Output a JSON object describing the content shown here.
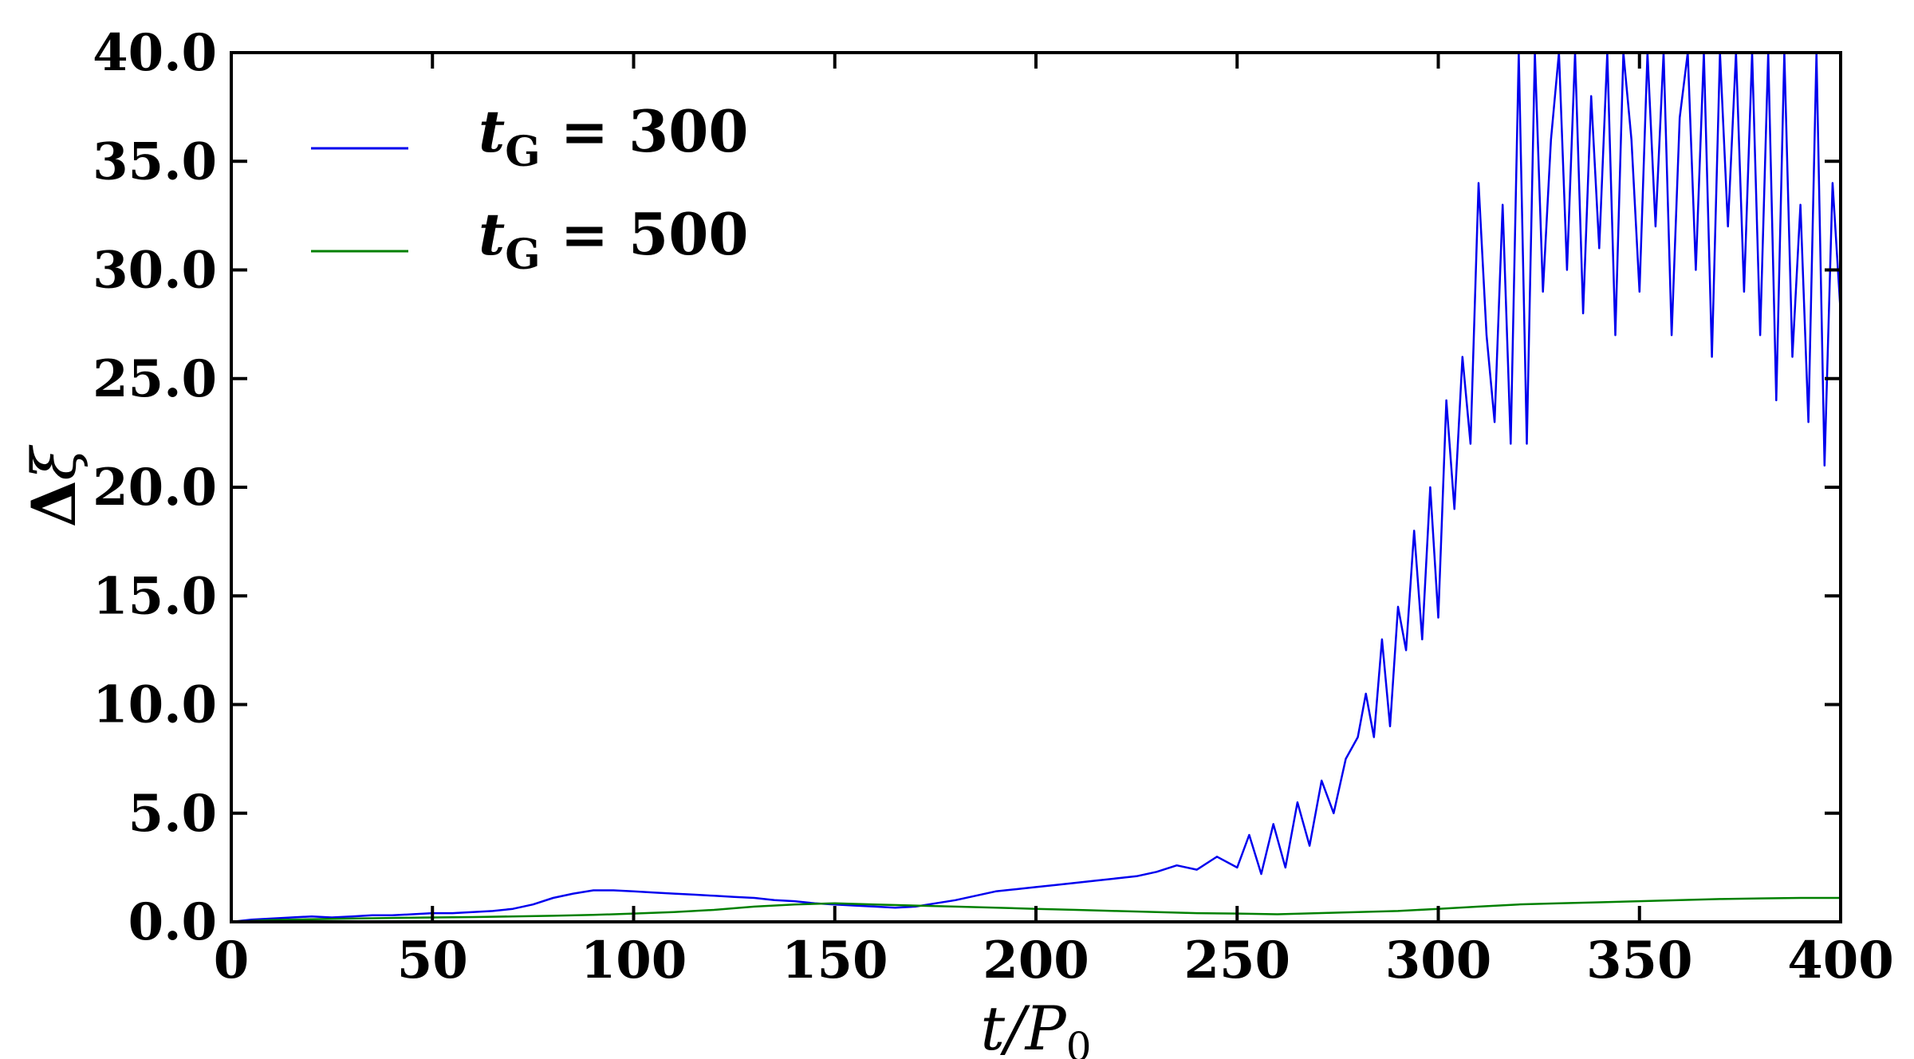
{
  "chart_data": {
    "type": "line",
    "xlabel": "t/P_0",
    "ylabel": "Δξ",
    "xlim": [
      0,
      400
    ],
    "ylim": [
      0,
      40
    ],
    "x_ticks": [
      0,
      50,
      100,
      150,
      200,
      250,
      300,
      350,
      400
    ],
    "x_tick_labels": [
      "0",
      "50",
      "100",
      "150",
      "200",
      "250",
      "300",
      "350",
      "400"
    ],
    "y_ticks": [
      0,
      5,
      10,
      15,
      20,
      25,
      30,
      35,
      40
    ],
    "y_tick_labels": [
      "0.0",
      "5.0",
      "10.0",
      "15.0",
      "20.0",
      "25.0",
      "30.0",
      "35.0",
      "40.0"
    ],
    "legend_position": "top-left",
    "grid": false,
    "series": [
      {
        "name": "t_G = 300",
        "legend_var": "t",
        "legend_sub": "G",
        "legend_rest": " = 300",
        "color": "#0000ee",
        "x": [
          0,
          5,
          10,
          15,
          20,
          25,
          30,
          35,
          40,
          45,
          50,
          55,
          60,
          65,
          70,
          75,
          80,
          85,
          90,
          95,
          100,
          105,
          110,
          115,
          120,
          125,
          130,
          135,
          140,
          145,
          150,
          155,
          160,
          165,
          170,
          175,
          180,
          185,
          190,
          195,
          200,
          205,
          210,
          215,
          220,
          225,
          230,
          235,
          240,
          245,
          250,
          253,
          256,
          259,
          262,
          265,
          268,
          271,
          274,
          277,
          280,
          282,
          284,
          286,
          288,
          290,
          292,
          294,
          296,
          298,
          300,
          302,
          304,
          306,
          308,
          310,
          312,
          314,
          316,
          318,
          320,
          322,
          324,
          326,
          328,
          330,
          332,
          334,
          336,
          338,
          340,
          342,
          344,
          346,
          348,
          350,
          352,
          354,
          356,
          358,
          360,
          362,
          364,
          366,
          368,
          370,
          372,
          374,
          376,
          378,
          380,
          382,
          384,
          386,
          388,
          390,
          392,
          394,
          396,
          398,
          400
        ],
        "y": [
          0.0,
          0.1,
          0.15,
          0.2,
          0.25,
          0.2,
          0.25,
          0.3,
          0.3,
          0.35,
          0.4,
          0.4,
          0.45,
          0.5,
          0.6,
          0.8,
          1.1,
          1.3,
          1.45,
          1.45,
          1.4,
          1.35,
          1.3,
          1.25,
          1.2,
          1.15,
          1.1,
          1.0,
          0.95,
          0.85,
          0.8,
          0.75,
          0.7,
          0.65,
          0.7,
          0.85,
          1.0,
          1.2,
          1.4,
          1.5,
          1.6,
          1.7,
          1.8,
          1.9,
          2.0,
          2.1,
          2.3,
          2.6,
          2.4,
          3.0,
          2.5,
          4.0,
          2.2,
          4.5,
          2.5,
          5.5,
          3.5,
          6.5,
          5.0,
          7.5,
          8.5,
          10.5,
          8.5,
          13.0,
          9.0,
          14.5,
          12.5,
          18.0,
          13.0,
          20.0,
          14.0,
          24.0,
          19.0,
          26.0,
          22.0,
          34.0,
          27.0,
          23.0,
          33.0,
          22.0,
          40.0,
          22.0,
          40.0,
          29.0,
          36.0,
          40.0,
          30.0,
          40.0,
          28.0,
          38.0,
          31.0,
          40.0,
          27.0,
          40.0,
          36.0,
          29.0,
          40.0,
          32.0,
          40.0,
          27.0,
          37.0,
          40.0,
          30.0,
          40.0,
          26.0,
          40.0,
          32.0,
          40.0,
          29.0,
          40.0,
          27.0,
          40.0,
          24.0,
          40.0,
          26.0,
          33.0,
          23.0,
          40.0,
          21.0,
          34.0,
          28.0
        ]
      },
      {
        "name": "t_G = 500",
        "legend_var": "t",
        "legend_sub": "G",
        "legend_rest": " = 500",
        "color": "#008000",
        "x": [
          0,
          10,
          20,
          30,
          40,
          50,
          60,
          70,
          80,
          90,
          100,
          110,
          120,
          130,
          140,
          150,
          160,
          170,
          180,
          190,
          200,
          210,
          220,
          230,
          240,
          250,
          260,
          270,
          280,
          290,
          300,
          310,
          320,
          330,
          340,
          350,
          360,
          370,
          380,
          390,
          400
        ],
        "y": [
          0.0,
          0.08,
          0.12,
          0.15,
          0.18,
          0.2,
          0.22,
          0.25,
          0.28,
          0.32,
          0.38,
          0.45,
          0.55,
          0.7,
          0.8,
          0.85,
          0.8,
          0.75,
          0.7,
          0.65,
          0.6,
          0.55,
          0.5,
          0.45,
          0.4,
          0.38,
          0.35,
          0.4,
          0.45,
          0.5,
          0.6,
          0.7,
          0.8,
          0.85,
          0.9,
          0.95,
          1.0,
          1.05,
          1.08,
          1.1,
          1.1
        ]
      }
    ]
  }
}
